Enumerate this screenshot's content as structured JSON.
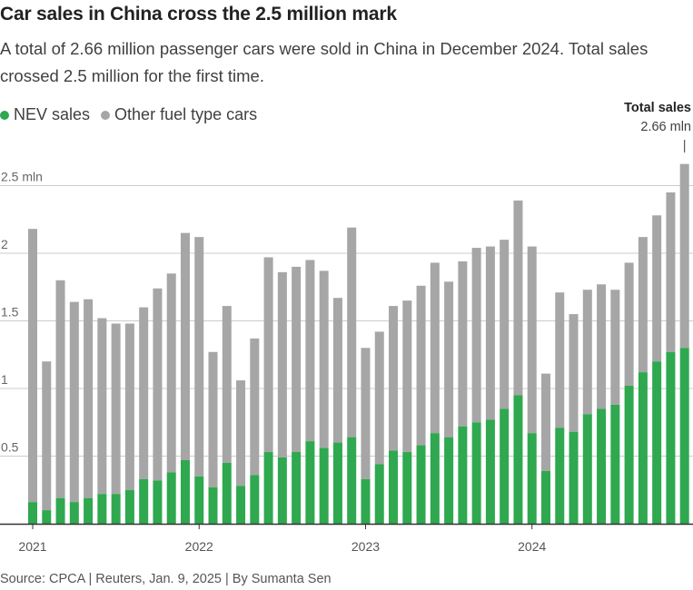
{
  "header": {
    "title": "Car sales in China cross the 2.5 million mark",
    "subtitle": "A total of 2.66 million passenger cars were sold in China in December 2024. Total sales crossed 2.5 million for the first time."
  },
  "legend": {
    "nev_label": "NEV sales",
    "other_label": "Other fuel type cars"
  },
  "annotation": {
    "title": "Total sales",
    "value": "2.66 mln"
  },
  "source": "Source: CPCA | Reuters, Jan. 9, 2025 | By Sumanta Sen",
  "colors": {
    "nev": "#2fa84f",
    "other": "#a6a6a6",
    "grid": "#cccccc",
    "axis": "#333333"
  },
  "chart_data": {
    "type": "bar",
    "stacked": true,
    "title": "Car sales in China cross the 2.5 million mark",
    "xlabel": "",
    "ylabel": "",
    "ylim": [
      0,
      2.66
    ],
    "y_ticks": [
      {
        "value": 0.5,
        "label": "0.5"
      },
      {
        "value": 1,
        "label": "1"
      },
      {
        "value": 1.5,
        "label": "1.5"
      },
      {
        "value": 2,
        "label": "2"
      },
      {
        "value": 2.5,
        "label": "2.5 mln"
      }
    ],
    "x_tick_labels": [
      {
        "index": 0,
        "label": "2021"
      },
      {
        "index": 12,
        "label": "2022"
      },
      {
        "index": 24,
        "label": "2023"
      },
      {
        "index": 36,
        "label": "2024"
      }
    ],
    "categories": [
      "Jan 2021",
      "Feb 2021",
      "Mar 2021",
      "Apr 2021",
      "May 2021",
      "Jun 2021",
      "Jul 2021",
      "Aug 2021",
      "Sep 2021",
      "Oct 2021",
      "Nov 2021",
      "Dec 2021",
      "Jan 2022",
      "Feb 2022",
      "Mar 2022",
      "Apr 2022",
      "May 2022",
      "Jun 2022",
      "Jul 2022",
      "Aug 2022",
      "Sep 2022",
      "Oct 2022",
      "Nov 2022",
      "Dec 2022",
      "Jan 2023",
      "Feb 2023",
      "Mar 2023",
      "Apr 2023",
      "May 2023",
      "Jun 2023",
      "Jul 2023",
      "Aug 2023",
      "Sep 2023",
      "Oct 2023",
      "Nov 2023",
      "Dec 2023",
      "Jan 2024",
      "Feb 2024",
      "Mar 2024",
      "Apr 2024",
      "May 2024",
      "Jun 2024",
      "Jul 2024",
      "Aug 2024",
      "Sep 2024",
      "Oct 2024",
      "Nov 2024",
      "Dec 2024"
    ],
    "series": [
      {
        "name": "NEV sales",
        "values": [
          0.16,
          0.1,
          0.19,
          0.16,
          0.19,
          0.22,
          0.22,
          0.25,
          0.33,
          0.32,
          0.38,
          0.47,
          0.35,
          0.27,
          0.45,
          0.28,
          0.36,
          0.53,
          0.49,
          0.53,
          0.61,
          0.56,
          0.6,
          0.64,
          0.33,
          0.44,
          0.54,
          0.53,
          0.58,
          0.67,
          0.64,
          0.72,
          0.75,
          0.77,
          0.85,
          0.95,
          0.67,
          0.39,
          0.71,
          0.68,
          0.81,
          0.85,
          0.88,
          1.02,
          1.12,
          1.2,
          1.27,
          1.3
        ]
      },
      {
        "name": "Other fuel type cars",
        "values": [
          2.02,
          1.1,
          1.61,
          1.48,
          1.47,
          1.3,
          1.26,
          1.23,
          1.27,
          1.42,
          1.47,
          1.68,
          1.77,
          1.0,
          1.16,
          0.78,
          1.01,
          1.44,
          1.37,
          1.37,
          1.34,
          1.31,
          1.07,
          1.55,
          0.97,
          0.98,
          1.07,
          1.12,
          1.18,
          1.26,
          1.15,
          1.22,
          1.29,
          1.28,
          1.25,
          1.44,
          1.38,
          0.72,
          1.0,
          0.87,
          0.92,
          0.92,
          0.85,
          0.91,
          1.0,
          1.08,
          1.18,
          1.36
        ]
      }
    ],
    "totals_annotation": {
      "index": 47,
      "label": "Total sales",
      "value": "2.66 mln"
    }
  }
}
